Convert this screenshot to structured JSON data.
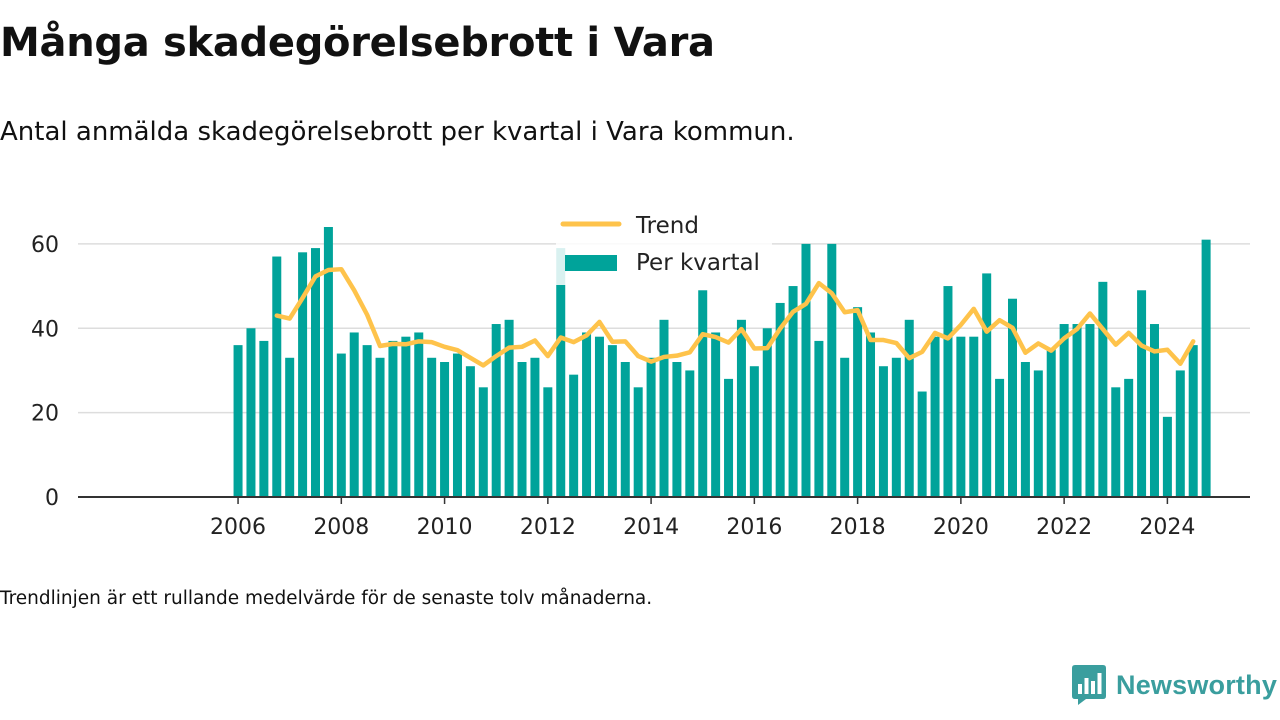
{
  "title": "Många skadegörelsebrott i Vara",
  "subtitle": "Antal anmälda skadegörelsebrott per kvartal i Vara kommun.",
  "footnote": "Trendlinjen är ett rullande medelvärde för de senaste tolv månaderna.",
  "brand": {
    "name": "Newsworthy",
    "icon": "newsworthy-chart-icon",
    "color": "#3a9e9e"
  },
  "chart_data": {
    "type": "bar",
    "x_start": 2006.0,
    "x_step": 0.25,
    "xlim": [
      2002.9,
      2025.6
    ],
    "ylim": [
      0,
      64
    ],
    "x_ticks": [
      2006,
      2008,
      2010,
      2012,
      2014,
      2016,
      2018,
      2020,
      2022,
      2024
    ],
    "y_ticks": [
      0,
      20,
      40,
      60
    ],
    "grid": true,
    "legend_position": "top-center",
    "colors": {
      "bars": "#00a39a",
      "trend": "#fec34b",
      "grid": "#dddddd",
      "axis": "#333333"
    },
    "series": [
      {
        "name": "Per kvartal",
        "type": "bar",
        "values": [
          36,
          40,
          37,
          57,
          33,
          58,
          59,
          64,
          34,
          39,
          36,
          33,
          37,
          38,
          39,
          33,
          32,
          34,
          31,
          26,
          41,
          42,
          32,
          33,
          26,
          59,
          29,
          39,
          38,
          36,
          32,
          26,
          33,
          42,
          32,
          30,
          49,
          39,
          28,
          42,
          31,
          40,
          46,
          50,
          60,
          37,
          60,
          33,
          45,
          39,
          31,
          33,
          42,
          25,
          38,
          50,
          38,
          38,
          53,
          28,
          47,
          32,
          30,
          35,
          41,
          41,
          41,
          51,
          26,
          28,
          49,
          41,
          19,
          30,
          36,
          61
        ]
      },
      {
        "name": "Trend",
        "type": "line",
        "start_index": 3,
        "values": [
          43,
          42.3,
          47.2,
          52.3,
          53.8,
          54,
          49,
          43.2,
          35.8,
          36.3,
          36.2,
          36.9,
          36.7,
          35.6,
          34.8,
          33,
          31.2,
          33.4,
          35.4,
          35.6,
          37.1,
          33.4,
          37.8,
          36.7,
          38.3,
          41.5,
          36.8,
          36.9,
          33.4,
          32.1,
          33.2,
          33.5,
          34.3,
          38.6,
          37.9,
          36.6,
          39.8,
          35.2,
          35.3,
          39.9,
          43.9,
          45.8,
          50.7,
          48.3,
          43.8,
          44.3,
          37.2,
          37.2,
          36.5,
          32.9,
          34.4,
          38.9,
          37.6,
          40.8,
          44.6,
          39.2,
          41.9,
          40.1,
          34.2,
          36.4,
          34.7,
          37.6,
          39.8,
          43.5,
          39.8,
          36.1,
          38.9,
          35.9,
          34.5,
          34.9,
          31.6,
          36.9
        ]
      }
    ]
  }
}
